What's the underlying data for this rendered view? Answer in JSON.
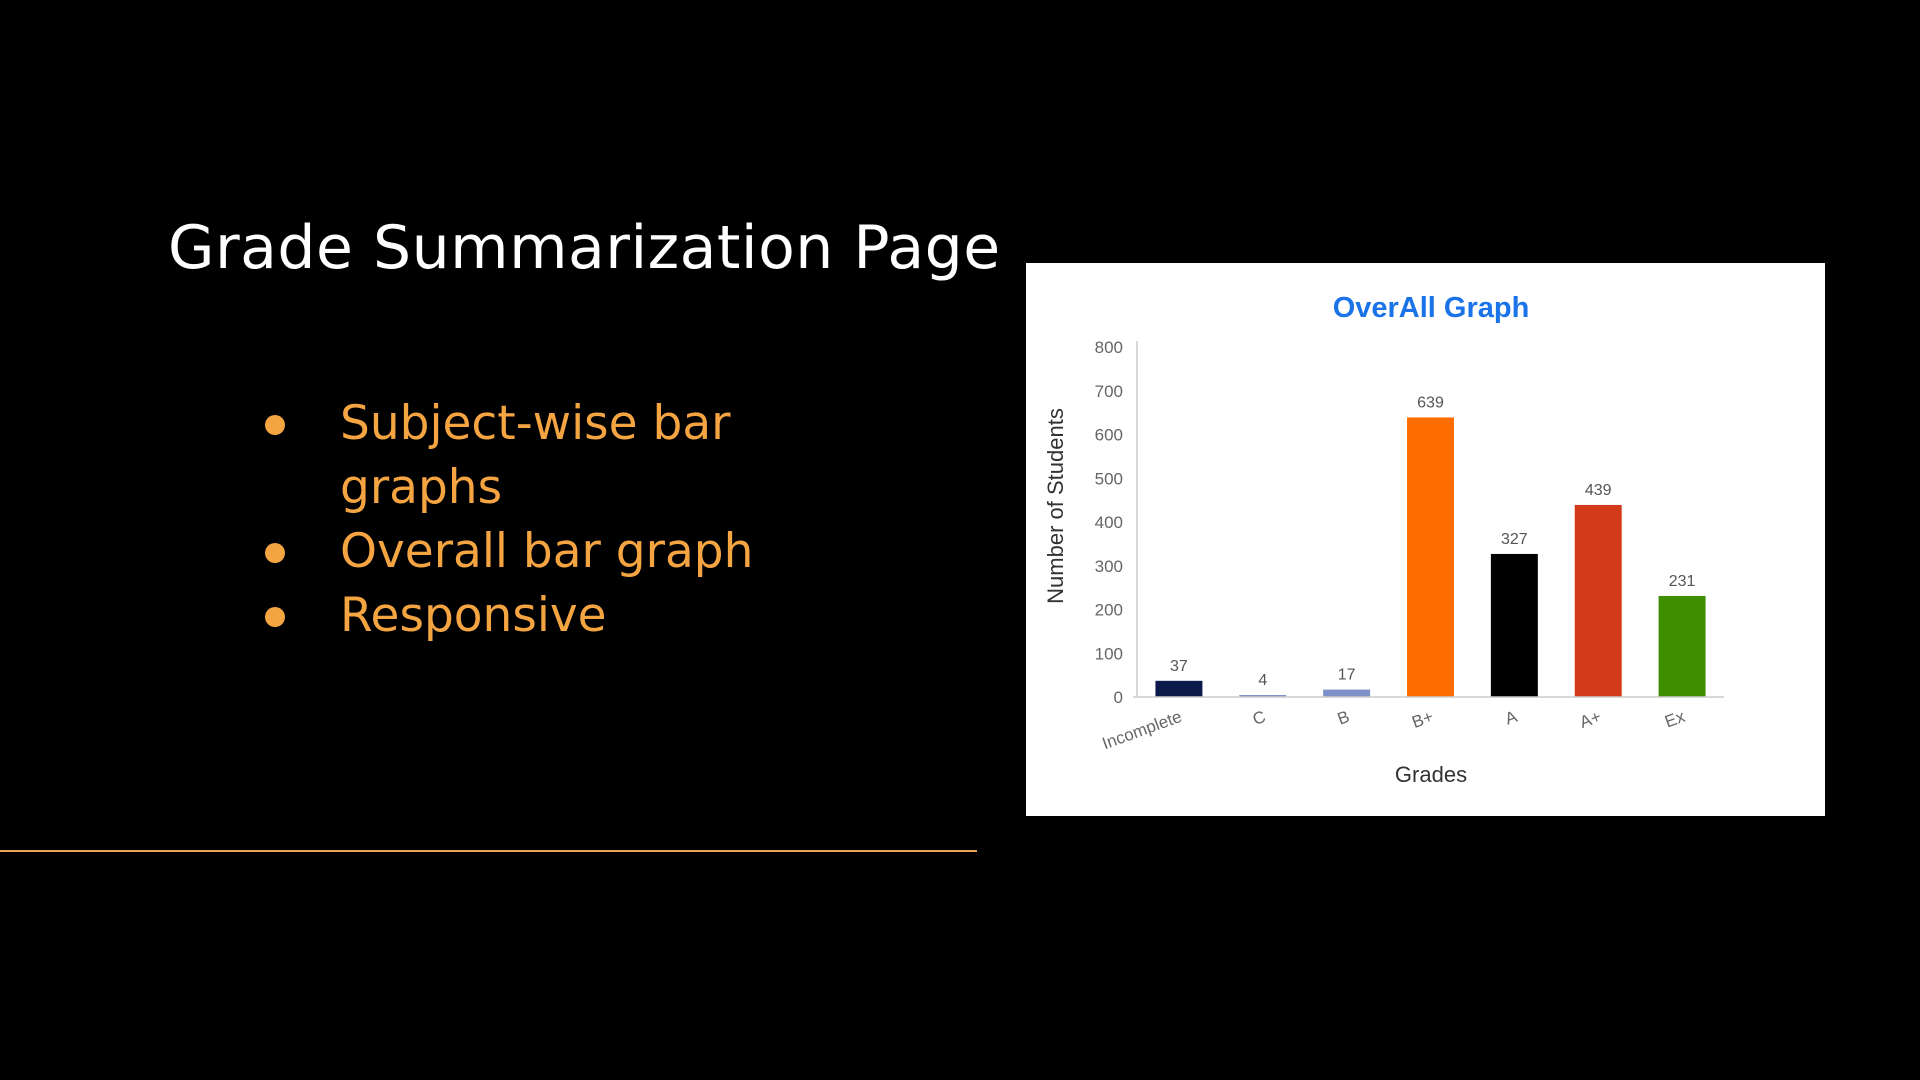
{
  "slide": {
    "title": "Grade Summarization Page",
    "bullets": [
      "Subject-wise bar graphs",
      "Overall bar graph",
      "Responsive"
    ],
    "text_color": "#ffffff",
    "accent_color": "#f5a442",
    "background_color": "#000000"
  },
  "chart_data": {
    "type": "bar",
    "title": "OverAll Graph",
    "xlabel": "Grades",
    "ylabel": "Number of Students",
    "categories": [
      "Incomplete",
      "C",
      "B",
      "B+",
      "A",
      "A+",
      "Ex"
    ],
    "values": [
      37,
      4,
      17,
      639,
      327,
      439,
      231
    ],
    "bar_colors": [
      "#0b1a4a",
      "#7d90c7",
      "#7d90c7",
      "#ff6d00",
      "#000000",
      "#d23a1a",
      "#3f8e00"
    ],
    "ylim": [
      0,
      800
    ],
    "yticks": [
      0,
      100,
      200,
      300,
      400,
      500,
      600,
      700,
      800
    ],
    "data_labels": true,
    "grid": false,
    "legend": "none",
    "title_color": "#1a73e8"
  }
}
